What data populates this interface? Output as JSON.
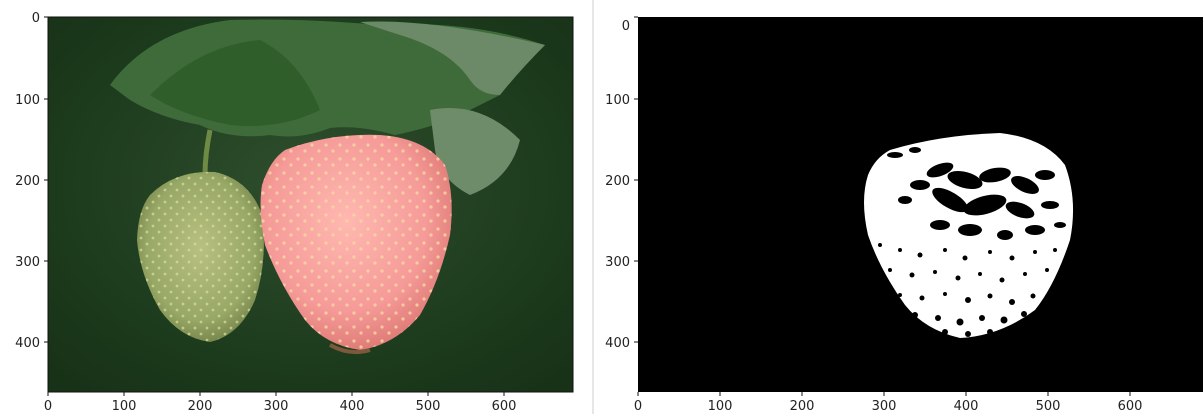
{
  "panels": [
    {
      "name": "overlay-image",
      "description": "strawberry photo with segmentation overlay",
      "x_ticks": [
        "0",
        "100",
        "200",
        "300",
        "400",
        "500",
        "600"
      ],
      "y_ticks": [
        "0",
        "100",
        "200",
        "300",
        "400"
      ]
    },
    {
      "name": "binary-mask",
      "description": "binary mask of strawberry",
      "x_ticks": [
        "0",
        "100",
        "200",
        "300",
        "400",
        "500",
        "600"
      ],
      "y_ticks": [
        "0",
        "100",
        "200",
        "300",
        "400"
      ]
    }
  ],
  "colors": {
    "background_left": "#1f3a1f",
    "leaves": "#2e5a2a",
    "green_berry": "#9aa96a",
    "red_berry_overlay": "#f59a98",
    "mask_bg": "#000000",
    "mask_fg": "#ffffff"
  }
}
